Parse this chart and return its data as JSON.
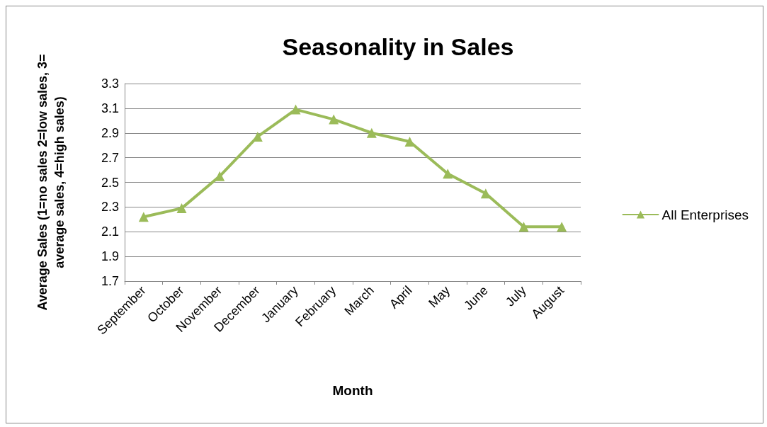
{
  "chart_data": {
    "type": "line",
    "title": "Seasonality in Sales",
    "xlabel": "Month",
    "ylabel": "Average Sales (1=no sales 2=low sales, 3= average sales, 4=high sales)",
    "categories": [
      "September",
      "October",
      "November",
      "December",
      "January",
      "February",
      "March",
      "April",
      "May",
      "June",
      "July",
      "August"
    ],
    "series": [
      {
        "name": "All Enterprises",
        "color": "#9bbb59",
        "values": [
          2.22,
          2.29,
          2.55,
          2.87,
          3.09,
          3.01,
          2.9,
          2.83,
          2.57,
          2.41,
          2.14,
          2.14
        ]
      }
    ],
    "ylim": [
      1.7,
      3.3
    ],
    "yticks": [
      1.7,
      1.9,
      2.1,
      2.3,
      2.5,
      2.7,
      2.9,
      3.1,
      3.3
    ],
    "grid": "y",
    "legend": "right",
    "marker": "triangle",
    "line_style": "solid"
  }
}
